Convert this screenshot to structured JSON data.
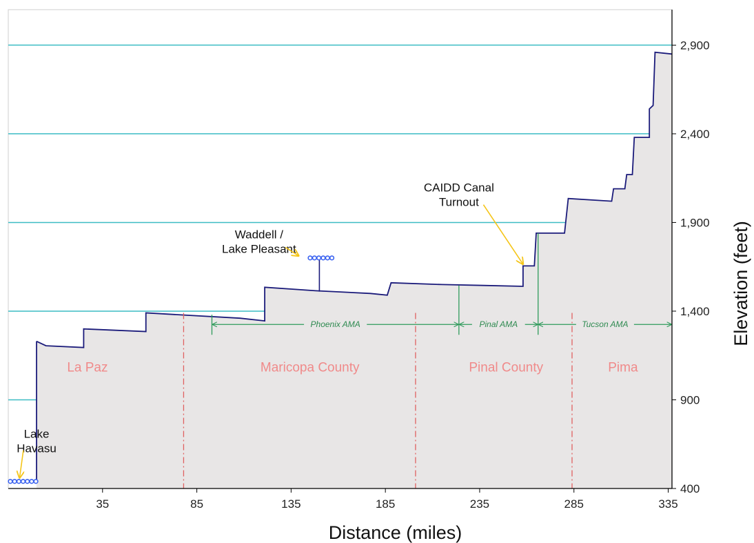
{
  "colors": {
    "profile_fill": "#e8e6e6",
    "profile_line": "#1a1a7a",
    "gridline": "#3cbcc4",
    "county_divider": "#e06060",
    "county_text": "#f08a8a",
    "ama_line": "#2e9a5a",
    "ama_text": "#2e8a50",
    "arrow": "#f5c518",
    "reservoir": "#3a62f0",
    "axis": "#000000"
  },
  "chart_data": {
    "type": "area",
    "title": "",
    "xlabel": "Distance (miles)",
    "ylabel": "Elevation (feet)",
    "xlim": [
      -15,
      337
    ],
    "ylim": [
      400,
      3100
    ],
    "x_ticks": [
      35,
      85,
      135,
      185,
      235,
      285,
      335
    ],
    "x_tick_labels": [
      "35",
      "85",
      "135",
      "185",
      "235",
      "285",
      "335"
    ],
    "y_ticks": [
      400,
      900,
      1400,
      1900,
      2400,
      2900
    ],
    "y_tick_labels": [
      "400",
      "900",
      "1,400",
      "1,900",
      "2,400",
      "2,900"
    ],
    "gridlines": [
      900,
      1400,
      1900,
      2400,
      2900
    ],
    "series": [
      {
        "values": [
          [
            0,
            1230
          ],
          [
            5,
            1205
          ],
          [
            25,
            1195
          ],
          [
            25,
            1300
          ],
          [
            58,
            1285
          ],
          [
            58,
            1390
          ],
          [
            75,
            1380
          ],
          [
            108,
            1360
          ],
          [
            121,
            1345
          ],
          [
            121,
            1535
          ],
          [
            148,
            1515
          ],
          [
            177,
            1500
          ],
          [
            186,
            1490
          ],
          [
            188,
            1560
          ],
          [
            215,
            1550
          ],
          [
            237,
            1545
          ],
          [
            258,
            1540
          ],
          [
            258,
            1655
          ],
          [
            264,
            1655
          ],
          [
            265,
            1840
          ],
          [
            280,
            1840
          ],
          [
            282,
            2035
          ],
          [
            305,
            2020
          ],
          [
            306,
            2090
          ],
          [
            312,
            2090
          ],
          [
            313,
            2170
          ],
          [
            316,
            2170
          ],
          [
            317,
            2380
          ],
          [
            325,
            2380
          ],
          [
            325,
            2540
          ],
          [
            327,
            2560
          ],
          [
            328,
            2860
          ],
          [
            342,
            2850
          ]
        ]
      }
    ],
    "reservoirs": [
      {
        "x0": -15,
        "x1": 0,
        "y": 440
      },
      {
        "x0": 144,
        "x1": 157,
        "y": 1700
      }
    ],
    "pump_connector": {
      "x": 150,
      "y0": 1510,
      "y1": 1700
    },
    "counties": [
      {
        "label": "La Paz",
        "x": 27
      },
      {
        "label": "Maricopa County",
        "x": 145
      },
      {
        "label": "Pinal County",
        "x": 249
      },
      {
        "label": "Pima",
        "x": 311
      }
    ],
    "county_label_y": 1060,
    "county_boundaries": [
      78,
      201,
      284
    ],
    "amas": [
      {
        "label": "Phoenix AMA",
        "x0": 93,
        "x1": 224
      },
      {
        "label": "Pinal AMA",
        "x0": 224,
        "x1": 266
      },
      {
        "label": "Tucson AMA",
        "x0": 266,
        "x1": 337
      }
    ],
    "ama_y": 1325,
    "ama_boundaries": [
      {
        "x": 93,
        "top": 1380
      },
      {
        "x": 224,
        "top": 1545
      },
      {
        "x": 266,
        "top": 1840
      }
    ],
    "annotations": [
      {
        "lines": [
          "Lake",
          "Havasu"
        ],
        "x": 0,
        "y": 685,
        "arrow_from": [
          -7,
          615
        ],
        "arrow_to": [
          -9,
          460
        ]
      },
      {
        "lines": [
          "Waddell /",
          "Lake Pleasant"
        ],
        "x": 118,
        "y": 1810,
        "arrow_from": [
          132,
          1760
        ],
        "arrow_to": [
          139,
          1712
        ]
      },
      {
        "lines": [
          "CAIDD Canal",
          "Turnout"
        ],
        "x": 224,
        "y": 2075,
        "arrow_from": [
          237,
          2000
        ],
        "arrow_to": [
          258,
          1665
        ]
      }
    ]
  }
}
